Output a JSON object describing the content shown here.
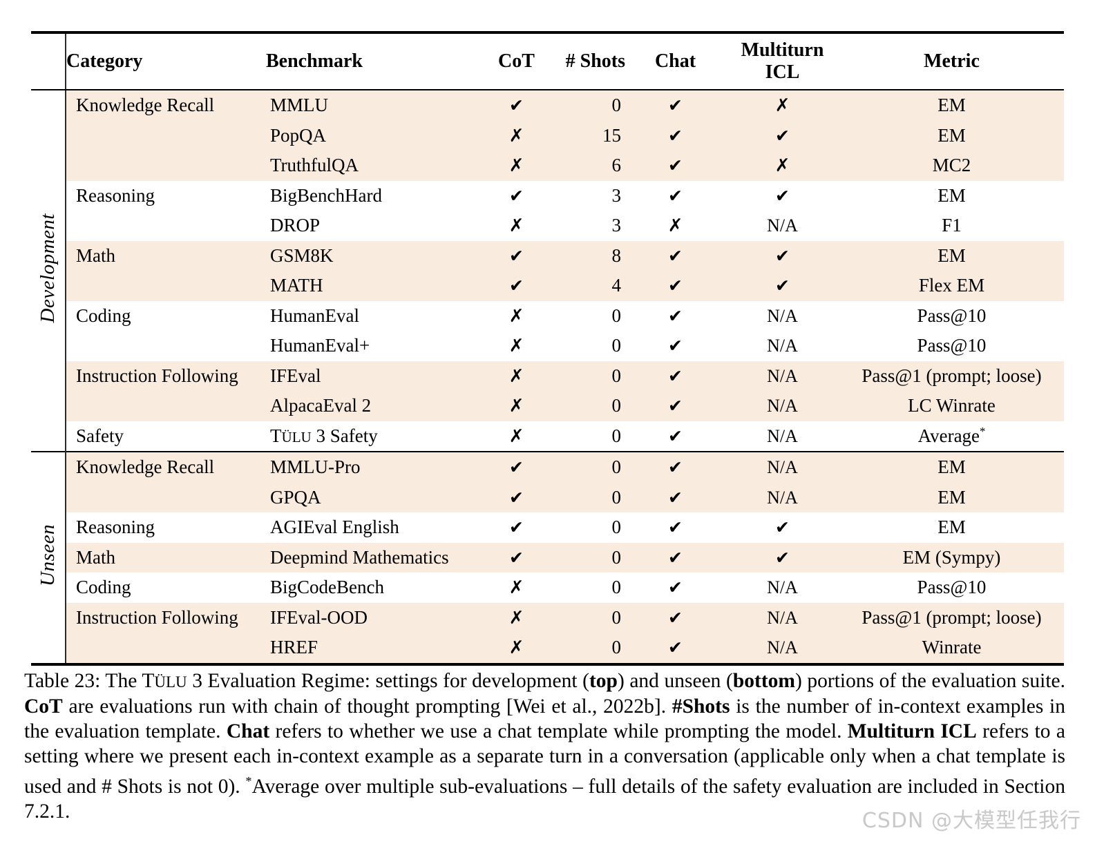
{
  "table": {
    "headers": {
      "category": "Category",
      "benchmark": "Benchmark",
      "cot": "CoT",
      "shots": "# Shots",
      "chat": "Chat",
      "multiturn": "Multiturn ICL",
      "metric": "Metric"
    },
    "symbols": {
      "check": "✔",
      "cross": "✗",
      "na": "N/A"
    },
    "colors": {
      "row_shade": "#f9ecdf",
      "rule": "#000000"
    },
    "sections": [
      {
        "label": "Development",
        "rows": [
          {
            "category": "Knowledge Recall",
            "benchmark": "MMLU",
            "cot": "check",
            "shots": "0",
            "chat": "check",
            "multiturn": "cross",
            "metric": "EM",
            "shaded": true
          },
          {
            "category": "",
            "benchmark": "PopQA",
            "cot": "cross",
            "shots": "15",
            "chat": "check",
            "multiturn": "check",
            "metric": "EM",
            "shaded": true
          },
          {
            "category": "",
            "benchmark": "TruthfulQA",
            "cot": "cross",
            "shots": "6",
            "chat": "check",
            "multiturn": "cross",
            "metric": "MC2",
            "shaded": true
          },
          {
            "category": "Reasoning",
            "benchmark": "BigBenchHard",
            "cot": "check",
            "shots": "3",
            "chat": "check",
            "multiturn": "check",
            "metric": "EM",
            "shaded": false
          },
          {
            "category": "",
            "benchmark": "DROP",
            "cot": "cross",
            "shots": "3",
            "chat": "cross",
            "multiturn": "na",
            "metric": "F1",
            "shaded": false
          },
          {
            "category": "Math",
            "benchmark": "GSM8K",
            "cot": "check",
            "shots": "8",
            "chat": "check",
            "multiturn": "check",
            "metric": "EM",
            "shaded": true
          },
          {
            "category": "",
            "benchmark": "MATH",
            "cot": "check",
            "shots": "4",
            "chat": "check",
            "multiturn": "check",
            "metric": "Flex EM",
            "shaded": true
          },
          {
            "category": "Coding",
            "benchmark": "HumanEval",
            "cot": "cross",
            "shots": "0",
            "chat": "check",
            "multiturn": "na",
            "metric": "Pass@10",
            "shaded": false
          },
          {
            "category": "",
            "benchmark": "HumanEval+",
            "cot": "cross",
            "shots": "0",
            "chat": "check",
            "multiturn": "na",
            "metric": "Pass@10",
            "shaded": false
          },
          {
            "category": "Instruction Following",
            "benchmark": "IFEval",
            "cot": "cross",
            "shots": "0",
            "chat": "check",
            "multiturn": "na",
            "metric": "Pass@1 (prompt; loose)",
            "shaded": true
          },
          {
            "category": "",
            "benchmark": "AlpacaEval 2",
            "cot": "cross",
            "shots": "0",
            "chat": "check",
            "multiturn": "na",
            "metric": "LC Winrate",
            "shaded": true
          },
          {
            "category": "Safety",
            "benchmark": "TÜLU 3 Safety",
            "cot": "cross",
            "shots": "0",
            "chat": "check",
            "multiturn": "na",
            "metric": "Average*",
            "shaded": false
          }
        ]
      },
      {
        "label": "Unseen",
        "rows": [
          {
            "category": "Knowledge Recall",
            "benchmark": "MMLU-Pro",
            "cot": "check",
            "shots": "0",
            "chat": "check",
            "multiturn": "na",
            "metric": "EM",
            "shaded": true
          },
          {
            "category": "",
            "benchmark": "GPQA",
            "cot": "check",
            "shots": "0",
            "chat": "check",
            "multiturn": "na",
            "metric": "EM",
            "shaded": true
          },
          {
            "category": "Reasoning",
            "benchmark": "AGIEval English",
            "cot": "check",
            "shots": "0",
            "chat": "check",
            "multiturn": "check",
            "metric": "EM",
            "shaded": false
          },
          {
            "category": "Math",
            "benchmark": "Deepmind Mathematics",
            "cot": "check",
            "shots": "0",
            "chat": "check",
            "multiturn": "check",
            "metric": "EM (Sympy)",
            "shaded": true
          },
          {
            "category": "Coding",
            "benchmark": "BigCodeBench",
            "cot": "cross",
            "shots": "0",
            "chat": "check",
            "multiturn": "na",
            "metric": "Pass@10",
            "shaded": false
          },
          {
            "category": "Instruction Following",
            "benchmark": "IFEval-OOD",
            "cot": "cross",
            "shots": "0",
            "chat": "check",
            "multiturn": "na",
            "metric": "Pass@1 (prompt; loose)",
            "shaded": true
          },
          {
            "category": "",
            "benchmark": "HREF",
            "cot": "cross",
            "shots": "0",
            "chat": "check",
            "multiturn": "na",
            "metric": "Winrate",
            "shaded": true
          }
        ]
      }
    ]
  },
  "caption": {
    "segments": [
      {
        "t": "Table 23: The T"
      },
      {
        "t": "ÜLU",
        "sc": true
      },
      {
        "t": " 3 Evaluation Regime: settings for development ("
      },
      {
        "t": "top",
        "b": true
      },
      {
        "t": ") and unseen ("
      },
      {
        "t": "bottom",
        "b": true
      },
      {
        "t": ") portions of the evaluation suite. "
      },
      {
        "t": "CoT",
        "b": true
      },
      {
        "t": " are evaluations run with chain of thought prompting [Wei et al., 2022b]. "
      },
      {
        "t": "#Shots",
        "b": true
      },
      {
        "t": " is the number of in-context examples in the evaluation template. "
      },
      {
        "t": "Chat",
        "b": true
      },
      {
        "t": " refers to whether we use a chat template while prompting the model. "
      },
      {
        "t": "Multiturn ICL",
        "b": true
      },
      {
        "t": " refers to a setting where we present each in-context example as a separate turn in a conversation (applicable only when a chat template is used and # Shots is not 0). "
      },
      {
        "t": "*",
        "sup": true
      },
      {
        "t": "Average over multiple sub-evaluations – full details of the safety evaluation are included in Section 7.2.1."
      }
    ]
  },
  "watermark": {
    "text": "CSDN @大模型任我行"
  }
}
